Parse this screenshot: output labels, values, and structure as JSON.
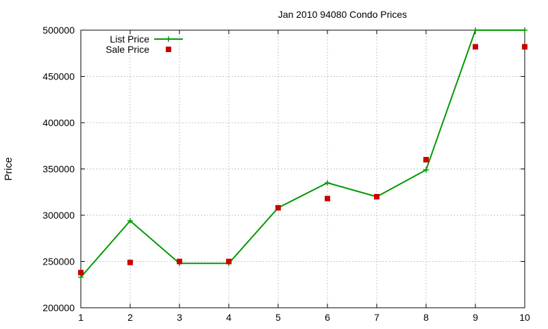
{
  "chart_data": {
    "type": "line",
    "title": "Jan 2010 94080 Condo Prices",
    "xlabel": "",
    "ylabel": "Price",
    "x": [
      1,
      2,
      3,
      4,
      5,
      6,
      7,
      8,
      9,
      10
    ],
    "xlim": [
      1,
      10
    ],
    "ylim": [
      200000,
      500000
    ],
    "x_ticks": [
      "1",
      "2",
      "3",
      "4",
      "5",
      "6",
      "7",
      "8",
      "9",
      "10"
    ],
    "y_ticks": [
      "200000",
      "250000",
      "300000",
      "350000",
      "400000",
      "450000",
      "500000"
    ],
    "grid": true,
    "legend_position": "top-left",
    "series": [
      {
        "name": "List Price",
        "style": "line-with-plus-markers",
        "color": "#009900",
        "values": [
          233000,
          294000,
          248000,
          248000,
          308000,
          335000,
          320000,
          349000,
          500000,
          500000
        ]
      },
      {
        "name": "Sale Price",
        "style": "square-points",
        "color": "#cc0000",
        "values": [
          238000,
          249000,
          250000,
          250000,
          308000,
          318000,
          320000,
          360000,
          482000,
          482000
        ]
      }
    ]
  }
}
